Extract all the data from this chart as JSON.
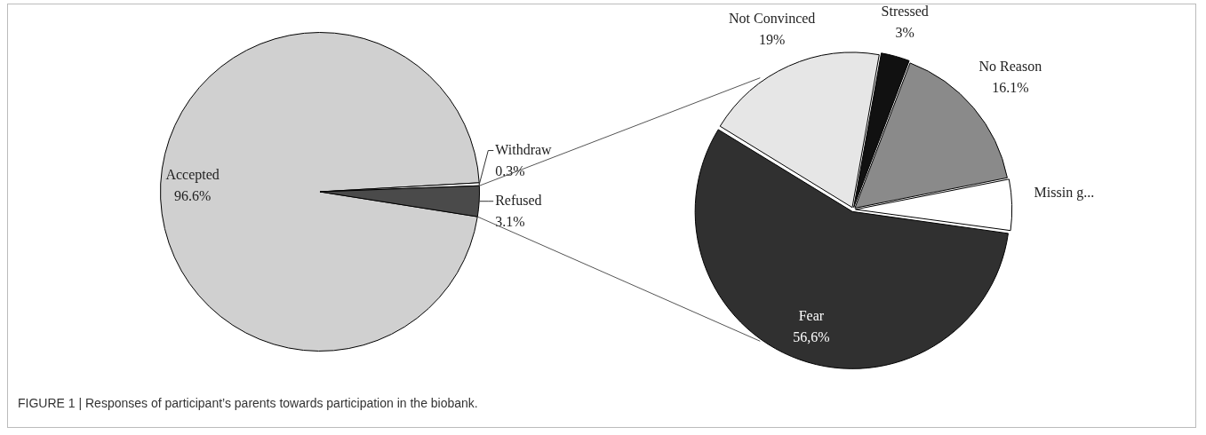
{
  "chart_data": [
    {
      "type": "pie",
      "categories": [
        "Accepted",
        "Withdraw",
        "Refused"
      ],
      "values": [
        96.6,
        0.3,
        3.1
      ],
      "value_labels": [
        "96.6%",
        "0.3%",
        "3.1%"
      ],
      "colors": [
        "#d0d0d0",
        "#ffffff",
        "#4a4a4a"
      ],
      "legend": false,
      "annotations": [
        "FIGURE 1 | Responses of participant’s parents towards participation in the biobank."
      ]
    },
    {
      "type": "pie",
      "categories": [
        "Stressed",
        "No Reason",
        "Missin g...",
        "Fear",
        "Not Convinced"
      ],
      "values": [
        3,
        16.1,
        5.3,
        56.6,
        19
      ],
      "value_labels": [
        "3%",
        "16.1%",
        null,
        "56,6%",
        "19%"
      ],
      "colors": [
        "#111111",
        "#8a8a8a",
        "#ffffff",
        "#303030",
        "#e6e6e6"
      ],
      "legend": false
    }
  ]
}
